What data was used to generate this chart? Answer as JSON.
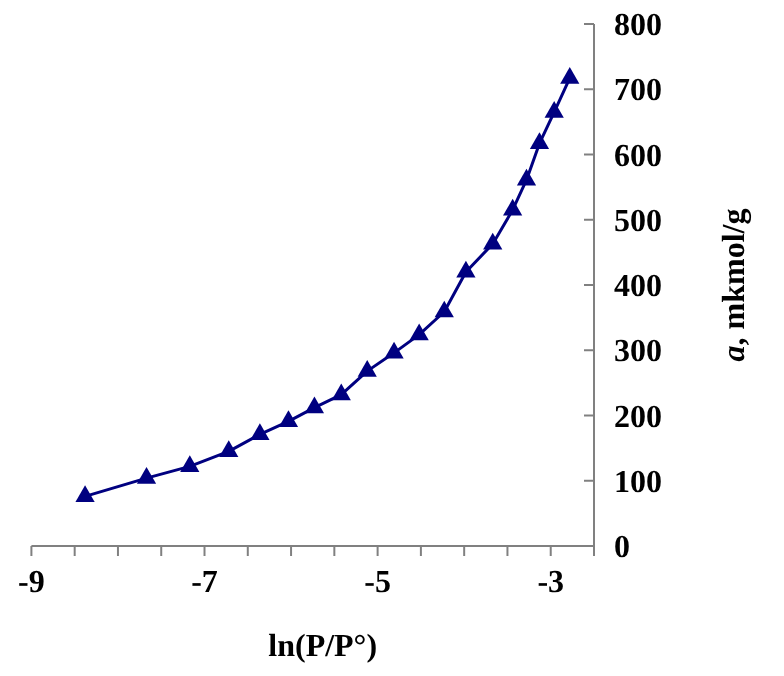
{
  "chart_data": {
    "type": "line",
    "xlabel": "ln(P/P°)",
    "ylabel": "a, mkmol/g",
    "x": [
      -8.38,
      -7.67,
      -7.17,
      -6.72,
      -6.36,
      -6.03,
      -5.73,
      -5.42,
      -5.12,
      -4.81,
      -4.52,
      -4.23,
      -3.98,
      -3.67,
      -3.44,
      -3.28,
      -3.13,
      -2.96,
      -2.78
    ],
    "series": [
      {
        "color": "#000080",
        "values": [
          76,
          104,
          122,
          145,
          171,
          191,
          212,
          232,
          268,
          296,
          324,
          359,
          420,
          463,
          515,
          561,
          617,
          665,
          717
        ]
      }
    ],
    "xlim": [
      -9,
      -2.5
    ],
    "xticks": [
      -9,
      {
        "value": -8.5,
        "label": null
      },
      {
        "value": -8,
        "label": null
      },
      {
        "value": -7.5,
        "label": null
      },
      -7,
      {
        "value": -6.5,
        "label": null
      },
      {
        "value": -6,
        "label": null
      },
      {
        "value": -5.5,
        "label": null
      },
      -5,
      {
        "value": -4.5,
        "label": null
      },
      {
        "value": -4,
        "label": null
      },
      {
        "value": -3.5,
        "label": null
      },
      -3,
      {
        "value": -2.5,
        "label": null
      }
    ],
    "ylim": [
      0,
      800
    ],
    "yticks": [
      0,
      100,
      200,
      300,
      400,
      500,
      600,
      700,
      800
    ],
    "marker": "triangle",
    "line_style": "solid",
    "grid": false
  }
}
